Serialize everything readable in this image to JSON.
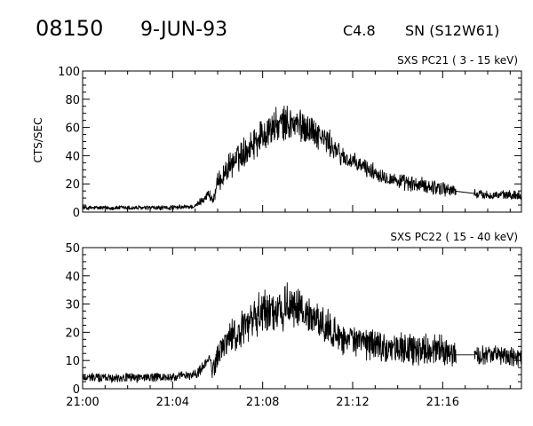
{
  "header": {
    "event_id": "08150",
    "date": "9-JUN-93",
    "flare_class": "C4.8",
    "location": "SN (S12W61)"
  },
  "chart_data": [
    {
      "type": "line",
      "title": "SXS PC21  (  3 - 15 keV)",
      "ylabel": "CTS/SEC",
      "xlabel": "",
      "ylim": [
        0,
        100
      ],
      "yticks": [
        0,
        20,
        40,
        60,
        80,
        100
      ],
      "xlim_minutes": [
        0,
        19.5
      ],
      "xtick_labels": [
        "21:00",
        "21:04",
        "21:08",
        "21:12",
        "21:16"
      ],
      "x_minutes": [
        0,
        1,
        2,
        3,
        4,
        5,
        5.4,
        5.6,
        5.8,
        6,
        6.5,
        7,
        7.5,
        8,
        8.5,
        9,
        9.5,
        10,
        10.5,
        11,
        11.5,
        12,
        12.5,
        13,
        13.5,
        14,
        14.5,
        15,
        15.5,
        16,
        16.5,
        17,
        17.5,
        18,
        18.5,
        19,
        19.5
      ],
      "y_smooth": [
        3,
        3,
        3,
        3,
        3,
        4,
        10,
        13,
        8,
        20,
        32,
        40,
        48,
        55,
        60,
        63,
        62,
        60,
        55,
        48,
        40,
        35,
        32,
        28,
        25,
        22,
        20,
        19,
        18,
        17,
        15,
        14,
        13,
        12,
        12,
        12,
        12
      ],
      "noise": [
        1.5,
        1.5,
        1.5,
        1.5,
        1.5,
        1.5,
        3,
        3,
        5,
        6,
        8,
        9,
        10,
        11,
        11,
        11,
        11,
        10,
        9,
        8,
        7,
        6,
        6,
        5,
        5,
        5,
        5,
        5,
        5,
        5,
        4,
        4,
        3,
        3,
        3,
        3,
        3
      ],
      "gaps_minutes": [
        [
          16.6,
          17.4
        ]
      ]
    },
    {
      "type": "line",
      "title": "SXS PC22  ( 15 - 40 keV)",
      "ylabel": "",
      "xlabel": "",
      "ylim": [
        0,
        50
      ],
      "yticks": [
        0,
        10,
        20,
        30,
        40,
        50
      ],
      "xlim_minutes": [
        0,
        19.5
      ],
      "xtick_labels": [
        "21:00",
        "21:04",
        "21:08",
        "21:12",
        "21:16"
      ],
      "x_minutes": [
        0,
        1,
        2,
        3,
        4,
        5,
        5.4,
        5.6,
        5.8,
        6,
        6.5,
        7,
        7.5,
        8,
        8.5,
        9,
        9.5,
        10,
        10.5,
        11,
        11.5,
        12,
        12.5,
        13,
        13.5,
        14,
        14.5,
        15,
        15.5,
        16,
        16.5,
        17,
        17.5,
        18,
        18.5,
        19,
        19.5
      ],
      "y_smooth": [
        4,
        4,
        4,
        4,
        4,
        5,
        8,
        11,
        6,
        12,
        18,
        20,
        24,
        27,
        28,
        29,
        28,
        26,
        24,
        21,
        18,
        17,
        16,
        16,
        15,
        14,
        14,
        14,
        14,
        13,
        12,
        12,
        12,
        12,
        12,
        11,
        11
      ],
      "noise": [
        1.5,
        1.5,
        1.5,
        1.5,
        1.5,
        1.5,
        2,
        2,
        3,
        4,
        5,
        6,
        6,
        7,
        7,
        7,
        7,
        6,
        6,
        5,
        5,
        5,
        5,
        5,
        5,
        5,
        5,
        5,
        5,
        5,
        4,
        3,
        3,
        3,
        3,
        3,
        3
      ],
      "gaps_minutes": [
        [
          16.6,
          17.4
        ]
      ]
    }
  ]
}
